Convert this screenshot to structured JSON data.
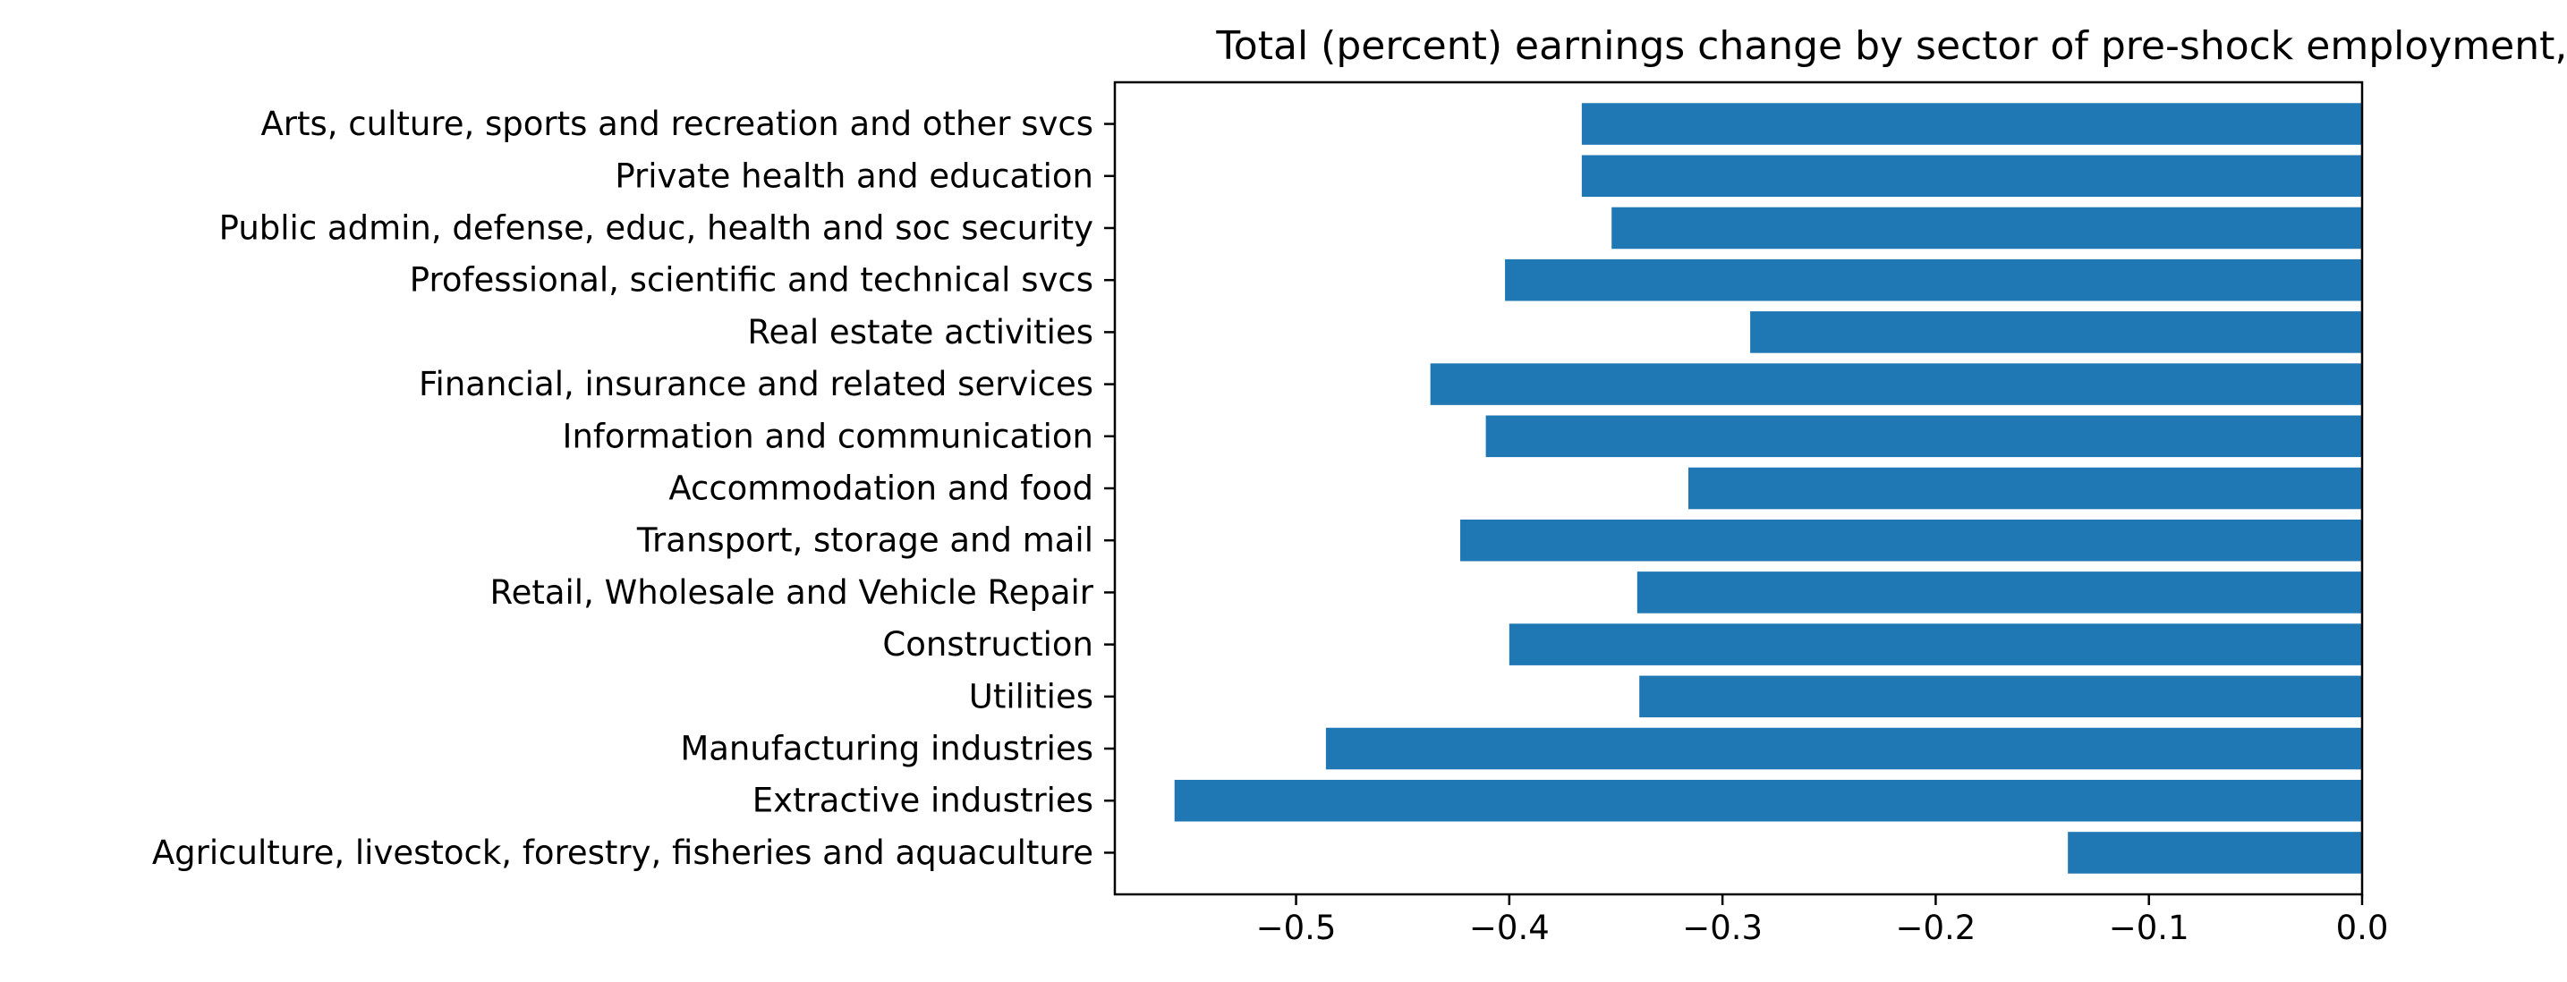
{
  "chart_data": {
    "type": "bar",
    "orientation": "horizontal",
    "title": "Total (percent) earnings change by sector of pre-shock employment, rio",
    "xlabel": "",
    "ylabel": "",
    "categories": [
      "Agriculture, livestock, forestry, fisheries and aquaculture",
      "Extractive industries",
      "Manufacturing industries",
      "Utilities",
      "Construction",
      "Retail, Wholesale and Vehicle Repair",
      "Transport, storage and mail",
      "Accommodation and food",
      "Information and communication",
      "Financial, insurance and related services",
      "Real estate activities",
      "Professional, scientific and technical svcs",
      "Public admin, defense, educ, health and soc security",
      "Private health and education",
      "Arts, culture, sports and recreation and other svcs"
    ],
    "values": [
      -0.138,
      -0.557,
      -0.486,
      -0.339,
      -0.4,
      -0.34,
      -0.423,
      -0.316,
      -0.411,
      -0.437,
      -0.287,
      -0.402,
      -0.352,
      -0.366,
      -0.366
    ],
    "xlim": [
      -0.585,
      0.0
    ],
    "xticks": [
      -0.5,
      -0.4,
      -0.3,
      -0.2,
      -0.1,
      0.0
    ],
    "xtick_labels": [
      "−0.5",
      "−0.4",
      "−0.3",
      "−0.2",
      "−0.1",
      "0.0"
    ],
    "grid": false,
    "colors": {
      "bar": "#1f77b4",
      "axis": "#000000",
      "text": "#000000"
    }
  }
}
